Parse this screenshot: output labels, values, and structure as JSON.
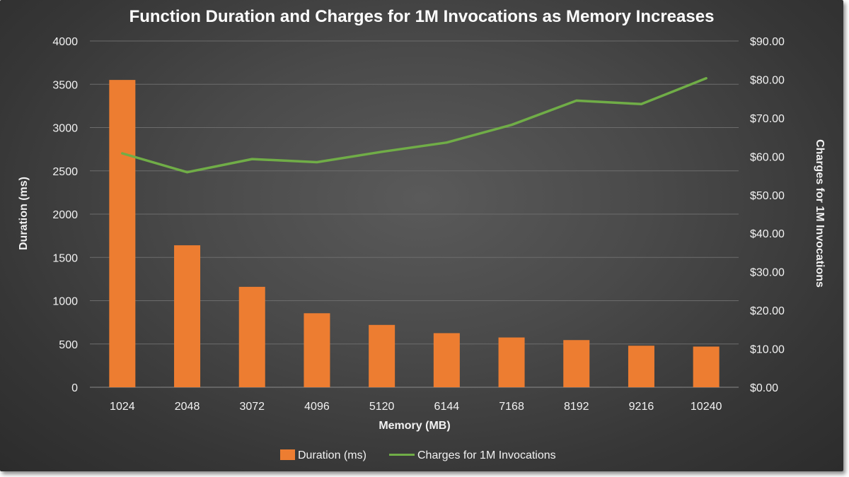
{
  "chart_data": {
    "type": "bar+line",
    "title": "Function Duration and Charges for 1M Invocations as Memory Increases",
    "xlabel": "Memory (MB)",
    "ylabel": "Duration (ms)",
    "y2label": "Charges for 1M Invocations",
    "categories": [
      "1024",
      "2048",
      "3072",
      "4096",
      "5120",
      "6144",
      "7168",
      "8192",
      "9216",
      "10240"
    ],
    "ylim": [
      0,
      4000
    ],
    "yticks": [
      0,
      500,
      1000,
      1500,
      2000,
      2500,
      3000,
      3500,
      4000
    ],
    "ytick_labels": [
      "0",
      "500",
      "1000",
      "1500",
      "2000",
      "2500",
      "3000",
      "3500",
      "4000"
    ],
    "y2lim": [
      0,
      90
    ],
    "y2ticks": [
      0,
      10,
      20,
      30,
      40,
      50,
      60,
      70,
      80,
      90
    ],
    "y2tick_labels": [
      "$0.00",
      "$10.00",
      "$20.00",
      "$30.00",
      "$40.00",
      "$50.00",
      "$60.00",
      "$70.00",
      "$80.00",
      "$90.00"
    ],
    "series": [
      {
        "name": "Duration (ms)",
        "type": "bar",
        "axis": "left",
        "color": "#ed7d31",
        "values": [
          3550,
          1640,
          1160,
          855,
          720,
          625,
          575,
          545,
          480,
          470
        ]
      },
      {
        "name": "Charges for 1M Invocations",
        "type": "line",
        "axis": "right",
        "color": "#70ad47",
        "values": [
          60.8,
          55.9,
          59.3,
          58.5,
          61.2,
          63.6,
          68.2,
          74.5,
          73.6,
          80.3
        ]
      }
    ],
    "legend_position": "bottom",
    "grid": true
  }
}
